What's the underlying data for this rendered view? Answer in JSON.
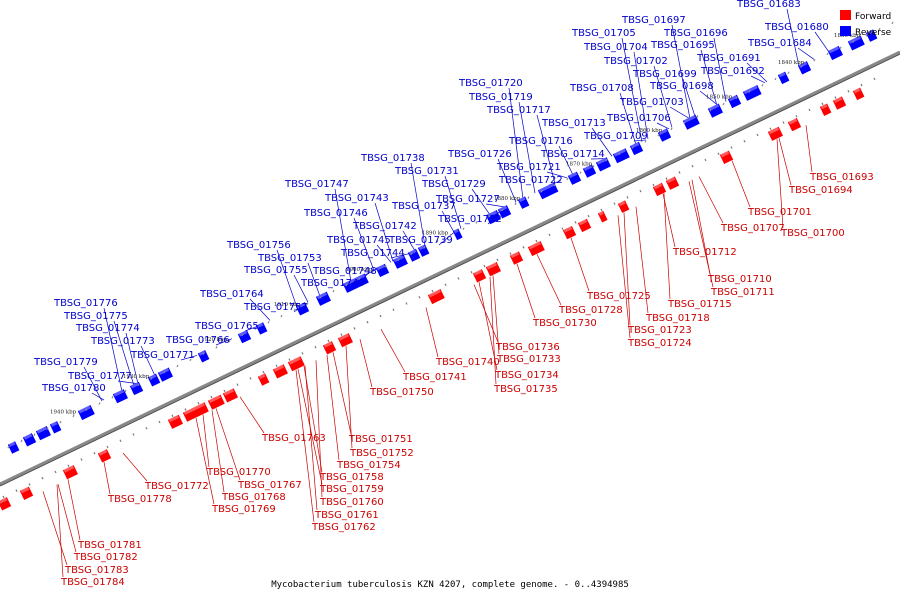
{
  "caption": "Mycobacterium tuberculosis KZN 4207, complete genome. - 0..4394985",
  "legend": {
    "forward": "Forward",
    "reverse": "Reverse"
  },
  "colors": {
    "forward": "#ff0000",
    "reverse": "#0000ff",
    "forward_line": "#cc0000",
    "reverse_line": "#0000cc",
    "axis": "#888888"
  },
  "ticks": [
    "1830 kbp",
    "1840 kbp",
    "1850 kbp",
    "1860 kbp",
    "1870 kbp",
    "1880 kbp",
    "1890 kbp",
    "1900 kbp",
    "1910 kbp",
    "1920 kbp",
    "1930 kbp",
    "1940 kbp"
  ],
  "reverse_labels": [
    "TBSG_01683",
    "TBSG_01680",
    "TBSG_01684",
    "TBSG_01697",
    "TBSG_01705",
    "TBSG_01696",
    "TBSG_01704",
    "TBSG_01695",
    "TBSG_01702",
    "TBSG_01691",
    "TBSG_01699",
    "TBSG_01692",
    "TBSG_01708",
    "TBSG_01698",
    "TBSG_01703",
    "TBSG_01706",
    "TBSG_01720",
    "TBSG_01719",
    "TBSG_01717",
    "TBSG_01713",
    "TBSG_01709",
    "TBSG_01716",
    "TBSG_01714",
    "TBSG_01726",
    "TBSG_01721",
    "TBSG_01722",
    "TBSG_01738",
    "TBSG_01731",
    "TBSG_01729",
    "TBSG_01727",
    "TBSG_01737",
    "TBSG_01732",
    "TBSG_01747",
    "TBSG_01743",
    "TBSG_01746",
    "TBSG_01742",
    "TBSG_01745",
    "TBSG_01739",
    "TBSG_01744",
    "TBSG_01756",
    "TBSG_01753",
    "TBSG_01755",
    "TBSG_01748",
    "TBSG_01749",
    "TBSG_01764",
    "TBSG_01757",
    "TBSG_01765",
    "TBSG_01766",
    "TBSG_01776",
    "TBSG_01775",
    "TBSG_01774",
    "TBSG_01773",
    "TBSG_01771",
    "TBSG_01779",
    "TBSG_01777",
    "TBSG_01780"
  ],
  "forward_labels": [
    "TBSG_01693",
    "TBSG_01694",
    "TBSG_01701",
    "TBSG_01707",
    "TBSG_01700",
    "TBSG_01712",
    "TBSG_01710",
    "TBSG_01711",
    "TBSG_01715",
    "TBSG_01718",
    "TBSG_01725",
    "TBSG_01728",
    "TBSG_01723",
    "TBSG_01724",
    "TBSG_01730",
    "TBSG_01736",
    "TBSG_01733",
    "TBSG_01740",
    "TBSG_01734",
    "TBSG_01741",
    "TBSG_01735",
    "TBSG_01750",
    "TBSG_01751",
    "TBSG_01763",
    "TBSG_01752",
    "TBSG_01754",
    "TBSG_01758",
    "TBSG_01759",
    "TBSG_01760",
    "TBSG_01761",
    "TBSG_01762",
    "TBSG_01767",
    "TBSG_01770",
    "TBSG_01768",
    "TBSG_01769",
    "TBSG_01772",
    "TBSG_01778",
    "TBSG_01781",
    "TBSG_01782",
    "TBSG_01783",
    "TBSG_01784"
  ]
}
